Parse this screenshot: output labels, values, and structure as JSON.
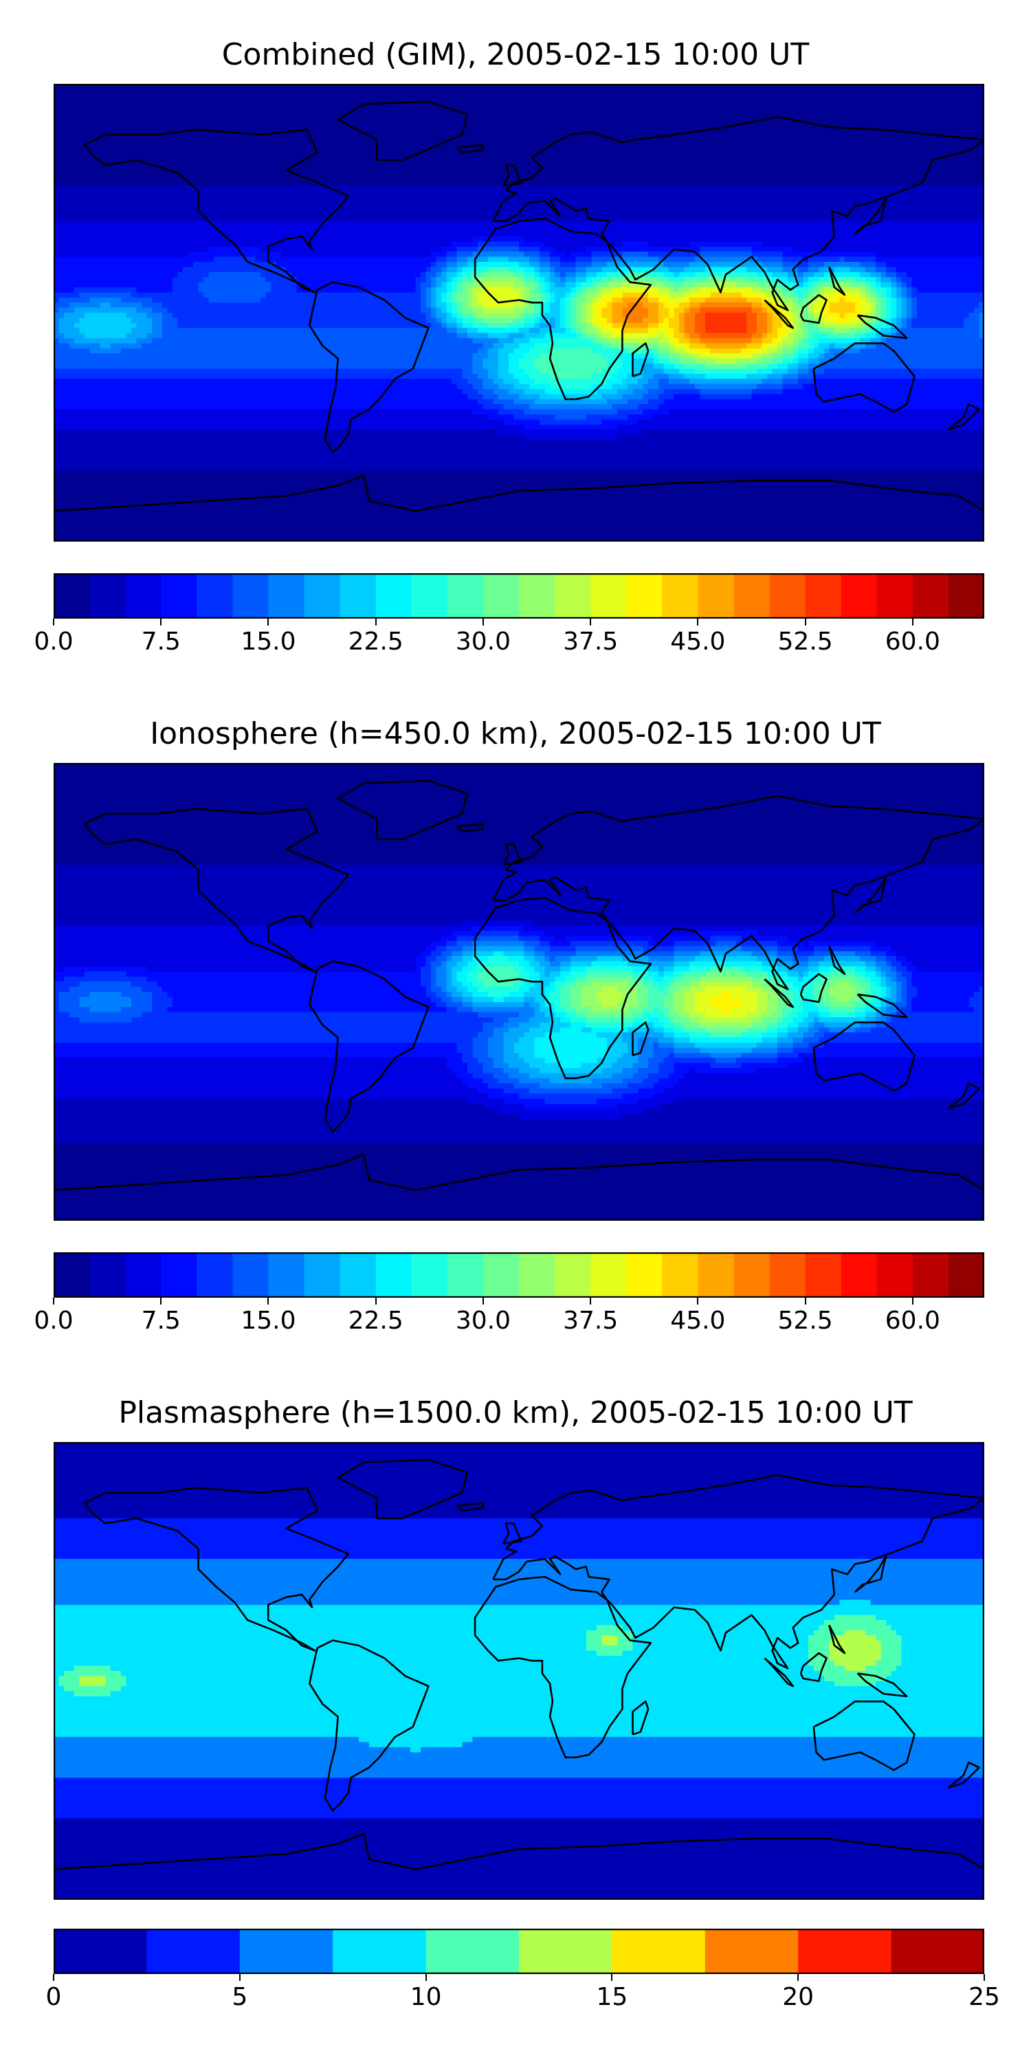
{
  "chart_data": [
    {
      "type": "heatmap",
      "title": "Combined (GIM), 2005-02-15 10:00 UT",
      "xlabel": "",
      "ylabel": "",
      "map": "world-contour-map",
      "hotspots": [
        {
          "region": "Indian Ocean / East Africa",
          "value": 57
        },
        {
          "region": "West Africa",
          "value": 44
        },
        {
          "region": "Maritime Continent",
          "value": 46
        }
      ],
      "colorbar": {
        "levels": [
          0,
          2.5,
          5,
          7.5,
          10,
          12.5,
          15,
          17.5,
          20,
          22.5,
          25,
          27.5,
          30,
          32.5,
          35,
          37.5,
          40,
          42.5,
          45,
          47.5,
          50,
          52.5,
          55,
          57.5,
          60,
          62.5,
          65
        ],
        "tick_values": [
          0,
          7.5,
          15,
          22.5,
          30,
          37.5,
          45,
          52.5,
          60
        ],
        "tick_labels": [
          "0.0",
          "7.5",
          "15.0",
          "22.5",
          "30.0",
          "37.5",
          "45.0",
          "52.5",
          "60.0"
        ],
        "range": [
          0,
          65
        ],
        "colormap": "jet"
      }
    },
    {
      "type": "heatmap",
      "title": "Ionosphere  (h=450.0 km), 2005-02-15 10:00 UT",
      "xlabel": "",
      "ylabel": "",
      "map": "world-contour-map",
      "hotspots": [
        {
          "region": "Indian Ocean",
          "value": 43
        },
        {
          "region": "Central Africa",
          "value": 38
        }
      ],
      "colorbar": {
        "levels": [
          0,
          2.5,
          5,
          7.5,
          10,
          12.5,
          15,
          17.5,
          20,
          22.5,
          25,
          27.5,
          30,
          32.5,
          35,
          37.5,
          40,
          42.5,
          45,
          47.5,
          50,
          52.5,
          55,
          57.5,
          60,
          62.5,
          65
        ],
        "tick_values": [
          0,
          7.5,
          15,
          22.5,
          30,
          37.5,
          45,
          52.5,
          60
        ],
        "tick_labels": [
          "0.0",
          "7.5",
          "15.0",
          "22.5",
          "30.0",
          "37.5",
          "45.0",
          "52.5",
          "60.0"
        ],
        "range": [
          0,
          65
        ],
        "colormap": "jet"
      }
    },
    {
      "type": "heatmap",
      "title": "Plasmasphere (h=1500.0 km), 2005-02-15 10:00 UT",
      "xlabel": "",
      "ylabel": "",
      "map": "world-contour-map",
      "hotspots": [
        {
          "region": "Western Pacific",
          "value": 14
        },
        {
          "region": "East Africa",
          "value": 13
        },
        {
          "region": "Eastern Pacific",
          "value": 13
        }
      ],
      "colorbar": {
        "levels": [
          0,
          2.5,
          5,
          7.5,
          10,
          12.5,
          15,
          17.5,
          20,
          22.5,
          25
        ],
        "tick_values": [
          0,
          5,
          10,
          15,
          20,
          25
        ],
        "tick_labels": [
          "0",
          "5",
          "10",
          "15",
          "20",
          "25"
        ],
        "range": [
          0,
          25
        ],
        "colormap": "jet"
      }
    }
  ]
}
